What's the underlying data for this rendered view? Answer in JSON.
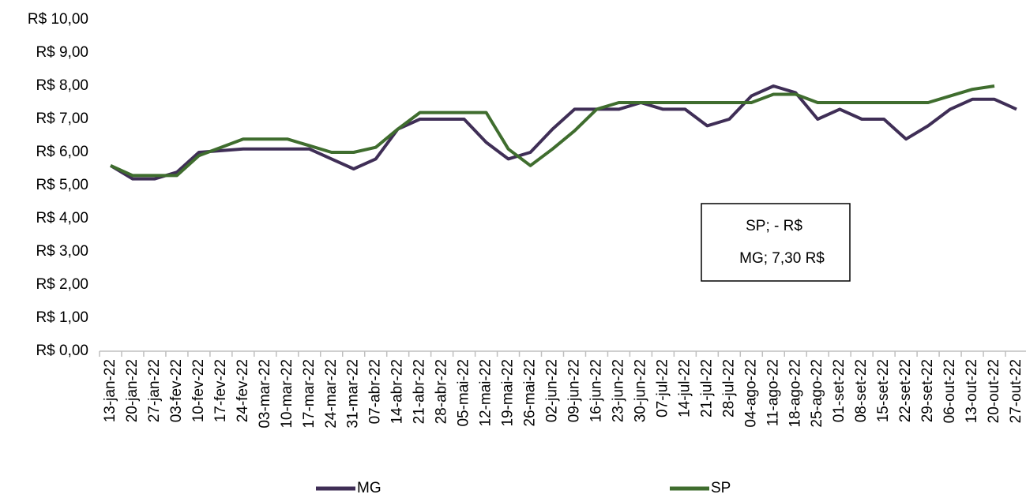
{
  "chart_data": {
    "type": "line",
    "categories": [
      "13-jan-22",
      "20-jan-22",
      "27-jan-22",
      "03-fev-22",
      "10-fev-22",
      "17-fev-22",
      "24-fev-22",
      "03-mar-22",
      "10-mar-22",
      "17-mar-22",
      "24-mar-22",
      "31-mar-22",
      "07-abr-22",
      "14-abr-22",
      "21-abr-22",
      "28-abr-22",
      "05-mai-22",
      "12-mai-22",
      "19-mai-22",
      "26-mai-22",
      "02-jun-22",
      "09-jun-22",
      "16-jun-22",
      "23-jun-22",
      "30-jun-22",
      "07-jul-22",
      "14-jul-22",
      "21-jul-22",
      "28-jul-22",
      "04-ago-22",
      "11-ago-22",
      "18-ago-22",
      "25-ago-22",
      "01-set-22",
      "08-set-22",
      "15-set-22",
      "22-set-22",
      "29-set-22",
      "06-out-22",
      "13-out-22",
      "20-out-22",
      "27-out-22"
    ],
    "series": [
      {
        "name": "MG",
        "color": "#3f2e56",
        "values": [
          5.6,
          5.2,
          5.2,
          5.4,
          6.0,
          6.05,
          6.1,
          6.1,
          6.1,
          6.1,
          5.8,
          5.5,
          5.8,
          6.7,
          7.0,
          7.0,
          7.0,
          6.3,
          5.8,
          6.0,
          6.7,
          7.3,
          7.3,
          7.3,
          7.5,
          7.3,
          7.3,
          6.8,
          7.0,
          7.7,
          8.0,
          7.8,
          7.0,
          7.3,
          7.0,
          7.0,
          6.4,
          6.8,
          7.3,
          7.6,
          7.6,
          7.3
        ]
      },
      {
        "name": "SP",
        "color": "#3f6d2e",
        "values": [
          5.6,
          5.3,
          5.3,
          5.3,
          5.9,
          6.15,
          6.4,
          6.4,
          6.4,
          6.2,
          6.0,
          6.0,
          6.15,
          6.7,
          7.2,
          7.2,
          7.2,
          7.2,
          6.1,
          5.6,
          6.1,
          6.65,
          7.3,
          7.5,
          7.5,
          7.5,
          7.5,
          7.5,
          7.5,
          7.5,
          7.75,
          7.75,
          7.5,
          7.5,
          7.5,
          7.5,
          7.5,
          7.5,
          7.7,
          7.9,
          8.0,
          null
        ]
      }
    ],
    "ylim": [
      0,
      10
    ],
    "yticks": [
      {
        "value": 0,
        "label": "R$ 0,00"
      },
      {
        "value": 1,
        "label": "R$ 1,00"
      },
      {
        "value": 2,
        "label": "R$ 2,00"
      },
      {
        "value": 3,
        "label": "R$ 3,00"
      },
      {
        "value": 4,
        "label": "R$ 4,00"
      },
      {
        "value": 5,
        "label": "R$ 5,00"
      },
      {
        "value": 6,
        "label": "R$ 6,00"
      },
      {
        "value": 7,
        "label": "R$ 7,00"
      },
      {
        "value": 8,
        "label": "R$ 8,00"
      },
      {
        "value": 9,
        "label": "R$ 9,00"
      },
      {
        "value": 10,
        "label": "R$ 10,00"
      }
    ],
    "annotations": [
      "SP; - R$",
      "MG; 7,30 R$"
    ],
    "grid": false
  }
}
